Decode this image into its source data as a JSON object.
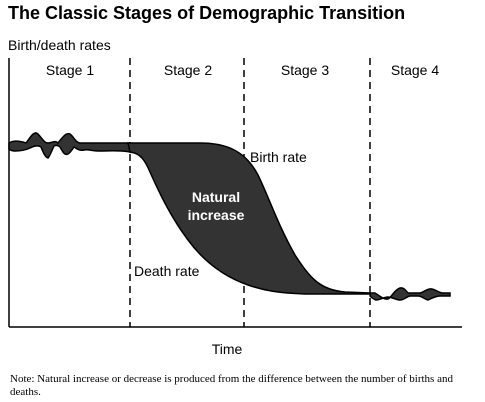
{
  "title": "The Classic Stages of Demographic Transition",
  "y_axis_label": "Birth/death rates",
  "x_axis_label": "Time",
  "stages": [
    "Stage 1",
    "Stage 2",
    "Stage 3",
    "Stage 4"
  ],
  "series_labels": {
    "birth_rate": "Birth rate",
    "death_rate": "Death rate",
    "natural_increase_line1": "Natural",
    "natural_increase_line2": "increase"
  },
  "note": "Note: Natural increase or decrease is produced from the difference between the number of births and deaths."
}
